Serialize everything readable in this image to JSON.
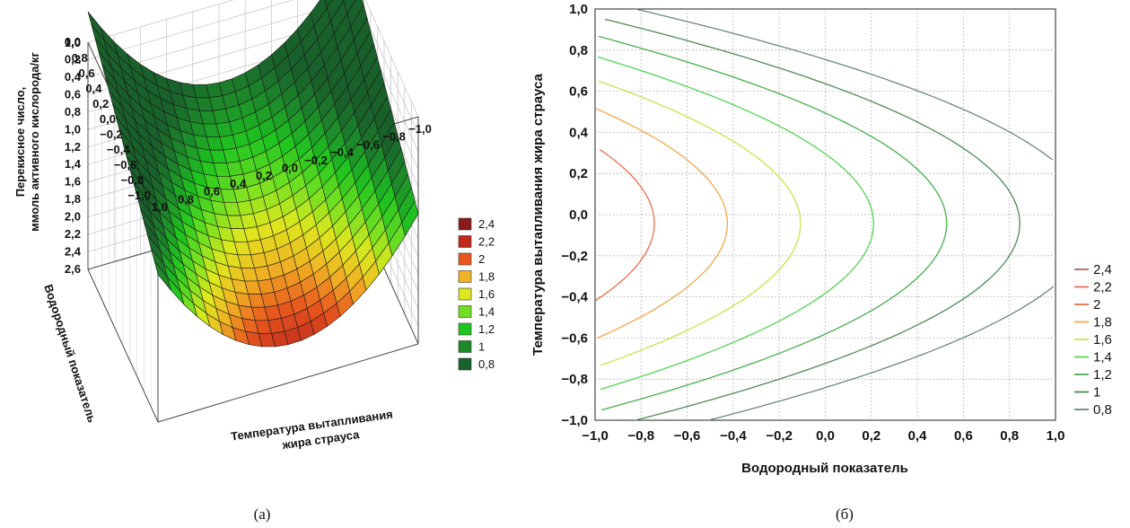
{
  "chart_data": [
    {
      "type": "surface3d",
      "panel_label": "(а)",
      "zlabel_line1": "Перекисное число,",
      "zlabel_line2": "ммоль активного кислорода/кг",
      "ylabel": "Водородный показатель",
      "xlabel_line1": "Температура вытапливания",
      "xlabel_line2": "жира страуса",
      "z_ticks": [
        "0,0",
        "0,2",
        "0,4",
        "0,6",
        "0,8",
        "1,0",
        "1,2",
        "1,4",
        "1,6",
        "1,8",
        "2,0",
        "2,2",
        "2,4",
        "2,6"
      ],
      "y_ticks": [
        "1,0",
        "0,8",
        "0,6",
        "0,4",
        "0,2",
        "0,0",
        "−0,2",
        "−0,4",
        "−0,6",
        "−0,8",
        "−1,0"
      ],
      "x_ticks": [
        "1,0",
        "0,8",
        "0,6",
        "0,4",
        "0,2",
        "0,0",
        "−0,2",
        "−0,4",
        "−0,6",
        "−0,8",
        "−1,0"
      ],
      "legend": [
        {
          "label": "2,4",
          "color": "#8b1a1a"
        },
        {
          "label": "2,2",
          "color": "#c0281c"
        },
        {
          "label": "2",
          "color": "#e8561e"
        },
        {
          "label": "1,8",
          "color": "#f0b324"
        },
        {
          "label": "1,6",
          "color": "#dde81e"
        },
        {
          "label": "1,4",
          "color": "#6fe022"
        },
        {
          "label": "1,2",
          "color": "#1fc41f"
        },
        {
          "label": "1",
          "color": "#1d8a2a"
        },
        {
          "label": "0,8",
          "color": "#19612a"
        }
      ],
      "zlim": [
        0.0,
        2.6
      ],
      "xlim": [
        -1.0,
        1.0
      ],
      "ylim": [
        -1.0,
        1.0
      ],
      "model": {
        "c0": 1.53,
        "ph": -0.63,
        "temp": -0.1,
        "temp2": 1.15
      },
      "grid": true
    },
    {
      "type": "contour",
      "panel_label": "(б)",
      "xlabel": "Водородный показатель",
      "ylabel": "Температура вытапливания жира страуса",
      "xlim": [
        -1.0,
        1.0
      ],
      "ylim": [
        -1.0,
        1.0
      ],
      "x_ticks": [
        "−1,0",
        "−0,8",
        "−0,6",
        "−0,4",
        "−0,2",
        "0,0",
        "0,2",
        "0,4",
        "0,6",
        "0,8",
        "1,0"
      ],
      "y_ticks": [
        "1,0",
        "0,8",
        "0,6",
        "0,4",
        "0,2",
        "0,0",
        "−0,2",
        "−0,4",
        "−0,6",
        "−0,8",
        "−1,0"
      ],
      "levels": [
        {
          "label": "2,4",
          "value": 2.4,
          "color": "#b86464"
        },
        {
          "label": "2,2",
          "value": 2.2,
          "color": "#e86a5a"
        },
        {
          "label": "2",
          "value": 2.0,
          "color": "#f06e48"
        },
        {
          "label": "1,8",
          "value": 1.8,
          "color": "#f4a84a"
        },
        {
          "label": "1,6",
          "value": 1.6,
          "color": "#cfe04a"
        },
        {
          "label": "1,4",
          "value": 1.4,
          "color": "#54d454"
        },
        {
          "label": "1,2",
          "value": 1.2,
          "color": "#46b04e"
        },
        {
          "label": "1",
          "value": 1.0,
          "color": "#4f8a58"
        },
        {
          "label": "0,8",
          "value": 0.8,
          "color": "#6c8a72"
        }
      ],
      "model": {
        "c0": 1.53,
        "ph": -0.63,
        "temp": -0.1,
        "temp2": 1.15
      },
      "grid": true
    }
  ]
}
